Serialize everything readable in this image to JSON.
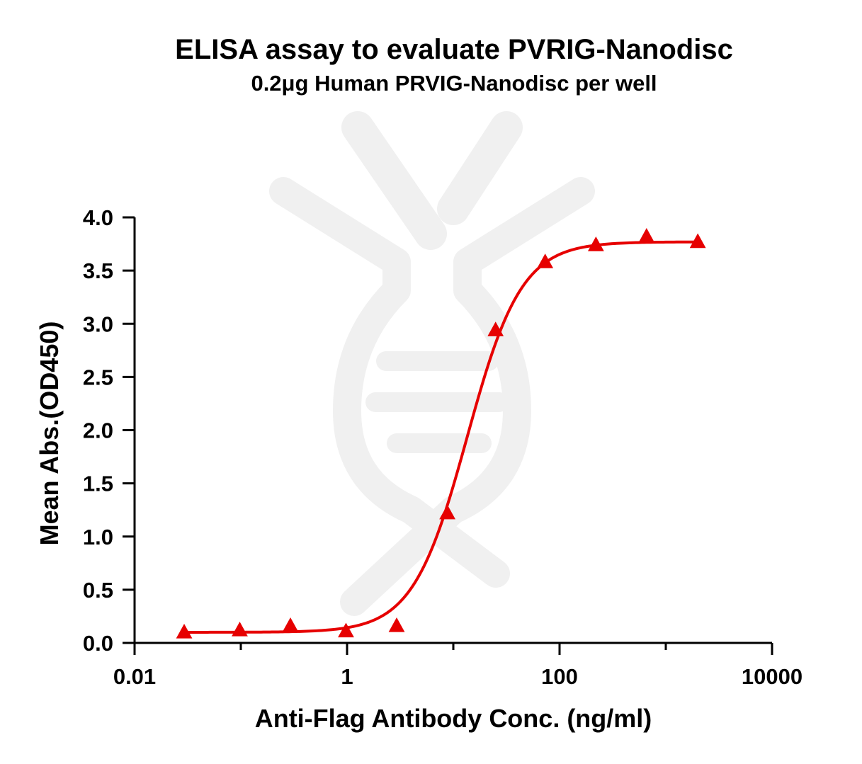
{
  "colors": {
    "series": "#e60000",
    "axis": "#000000",
    "watermark": "#f0f0f0"
  },
  "chart_data": {
    "type": "scatter",
    "title": "ELISA assay to evaluate PVRIG-Nanodisc",
    "subtitle": "0.2μg Human PRVIG-Nanodisc per well",
    "xlabel": "Anti-Flag Antibody Conc. (ng/ml)",
    "ylabel": "Mean Abs.(OD450)",
    "x_scale": "log",
    "xlim": [
      0.01,
      10000
    ],
    "ylim": [
      0,
      4.0
    ],
    "x_ticks": [
      0.01,
      1,
      100,
      10000
    ],
    "x_tick_labels": [
      "0.01",
      "1",
      "100",
      "10000"
    ],
    "y_ticks": [
      0.0,
      0.5,
      1.0,
      1.5,
      2.0,
      2.5,
      3.0,
      3.5,
      4.0
    ],
    "y_tick_labels": [
      "0.0",
      "0.5",
      "1.0",
      "1.5",
      "2.0",
      "2.5",
      "3.0",
      "3.5",
      "4.0"
    ],
    "grid": false,
    "legend": "none",
    "series": [
      {
        "marker": "triangle",
        "x": [
          0.0293,
          0.0977,
          0.293,
          0.977,
          2.93,
          8.79,
          25.0,
          73.2,
          220,
          659,
          2000
        ],
        "y": [
          0.1,
          0.12,
          0.16,
          0.11,
          0.16,
          1.22,
          2.94,
          3.58,
          3.74,
          3.82,
          3.77
        ]
      }
    ],
    "fit_curve": {
      "model": "4PL",
      "bottom": 0.1,
      "top": 3.77,
      "ec50": 13.5,
      "hill": 1.7
    }
  }
}
